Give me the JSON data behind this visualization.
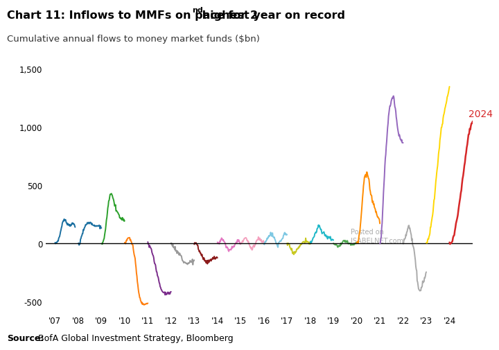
{
  "title1": "Chart 11: Inflows to MMFs on pace for 2",
  "title_sup": "nd",
  "title2": " highest year on record",
  "subtitle": "Cumulative annual flows to money market funds ($bn)",
  "source_bold": "Source:",
  "source_rest": " BofA Global Investment Strategy, Bloomberg",
  "ylim": [
    -600,
    1600
  ],
  "yticks": [
    -500,
    0,
    500,
    1000,
    1500
  ],
  "xlim_left": 2006.6,
  "xlim_right": 2025.0,
  "year_colors": {
    "2007": "#1a6fa0",
    "2008": "#1a6fa0",
    "2009": "#2ca02c",
    "2010": "#ff7f0e",
    "2011": "#7b2d8b",
    "2012": "#999999",
    "2013": "#8b1a1a",
    "2014": "#e377c2",
    "2015": "#f4a0be",
    "2016": "#7ec8e3",
    "2017": "#c8c820",
    "2018": "#20b8c8",
    "2019": "#50a850",
    "2020": "#ff8c00",
    "2021": "#9467bd",
    "2022": "#aaaaaa",
    "2023": "#ffd700",
    "2024": "#d62728"
  },
  "annotation_2024": "2024",
  "watermark_line1": "Posted on",
  "watermark_line2": "ISABELNET.com",
  "background": "#ffffff"
}
